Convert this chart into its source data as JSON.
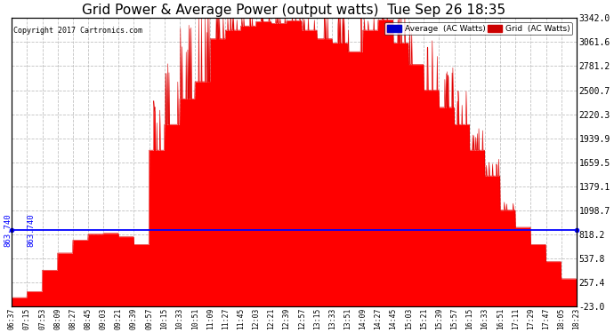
{
  "title": "Grid Power & Average Power (output watts)  Tue Sep 26 18:35",
  "copyright": "Copyright 2017 Cartronics.com",
  "avg_value": 863.74,
  "yticks_right": [
    3342.0,
    3061.6,
    2781.2,
    2500.7,
    2220.3,
    1939.9,
    1659.5,
    1379.1,
    1098.7,
    818.2,
    537.8,
    257.4,
    -23.0
  ],
  "ymin": -23.0,
  "ymax": 3342.0,
  "xtick_labels": [
    "06:37",
    "07:15",
    "07:53",
    "08:09",
    "08:27",
    "08:45",
    "09:03",
    "09:21",
    "09:39",
    "09:57",
    "10:15",
    "10:33",
    "10:51",
    "11:09",
    "11:27",
    "11:45",
    "12:03",
    "12:21",
    "12:39",
    "12:57",
    "13:15",
    "13:33",
    "13:51",
    "14:09",
    "14:27",
    "14:45",
    "15:03",
    "15:21",
    "15:39",
    "15:57",
    "16:15",
    "16:33",
    "16:51",
    "17:11",
    "17:29",
    "17:47",
    "18:05",
    "18:23"
  ],
  "bg_color": "#ffffff",
  "grid_color": "#bbbbbb",
  "fill_color": "#ff0000",
  "line_color": "#dd0000",
  "avg_line_color": "#0000ff",
  "title_fontsize": 11,
  "legend_avg_color": "#0000cc",
  "legend_grid_color": "#cc0000",
  "power_profile": [
    80,
    150,
    400,
    600,
    750,
    820,
    830,
    790,
    700,
    1800,
    2100,
    2400,
    2600,
    3100,
    3200,
    3250,
    3300,
    3280,
    3310,
    3200,
    3100,
    3050,
    2950,
    3200,
    3320,
    3050,
    2800,
    2500,
    2300,
    2100,
    1800,
    1500,
    1100,
    900,
    700,
    500,
    300,
    150
  ],
  "spike_heights": [
    0,
    0,
    0,
    0,
    0,
    0,
    0,
    0,
    0,
    600,
    800,
    900,
    1000,
    500,
    200,
    150,
    100,
    100,
    80,
    200,
    300,
    400,
    500,
    200,
    150,
    500,
    600,
    700,
    500,
    400,
    300,
    200,
    100,
    0,
    0,
    0,
    0,
    0
  ]
}
